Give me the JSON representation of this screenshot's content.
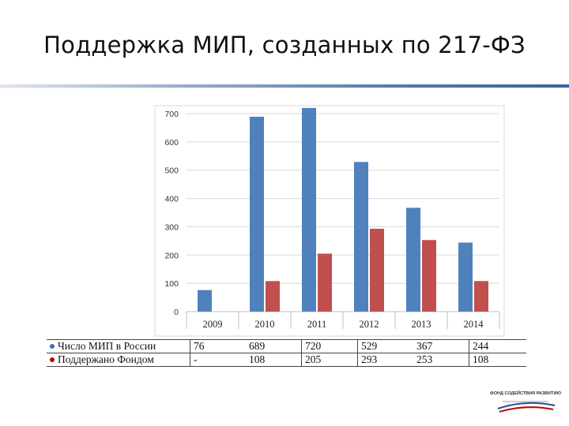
{
  "page": {
    "title": "Поддержка МИП, созданных по 217-ФЗ"
  },
  "chart_data": {
    "type": "bar",
    "categories": [
      "2009",
      "2010",
      "2011",
      "2012",
      "2013",
      "2014"
    ],
    "series": [
      {
        "name": "Число МИП в России",
        "values": [
          76,
          689,
          720,
          529,
          367,
          244
        ],
        "color": "#4f81bd"
      },
      {
        "name": "Поддержано Фондом",
        "values": [
          null,
          108,
          205,
          293,
          253,
          108
        ],
        "color": "#c0504d"
      }
    ],
    "ylim": [
      0,
      700
    ],
    "yticks": [
      0,
      100,
      200,
      300,
      400,
      500,
      600,
      700
    ],
    "grid": true,
    "legend": "table-below"
  },
  "table": {
    "rows": [
      {
        "label": "Число МИП в России",
        "dot_color": "#2e75b6",
        "cells": [
          "76",
          "689",
          "720",
          "529",
          "367",
          "244"
        ]
      },
      {
        "label": "Поддержано Фондом",
        "dot_color": "#c00000",
        "cells": [
          "-",
          "108",
          "205",
          "293",
          "253",
          "108"
        ]
      }
    ]
  },
  "logo": {
    "text": "ФОНД СОДЕЙСТВИЯ РАЗВИТИЮ"
  }
}
